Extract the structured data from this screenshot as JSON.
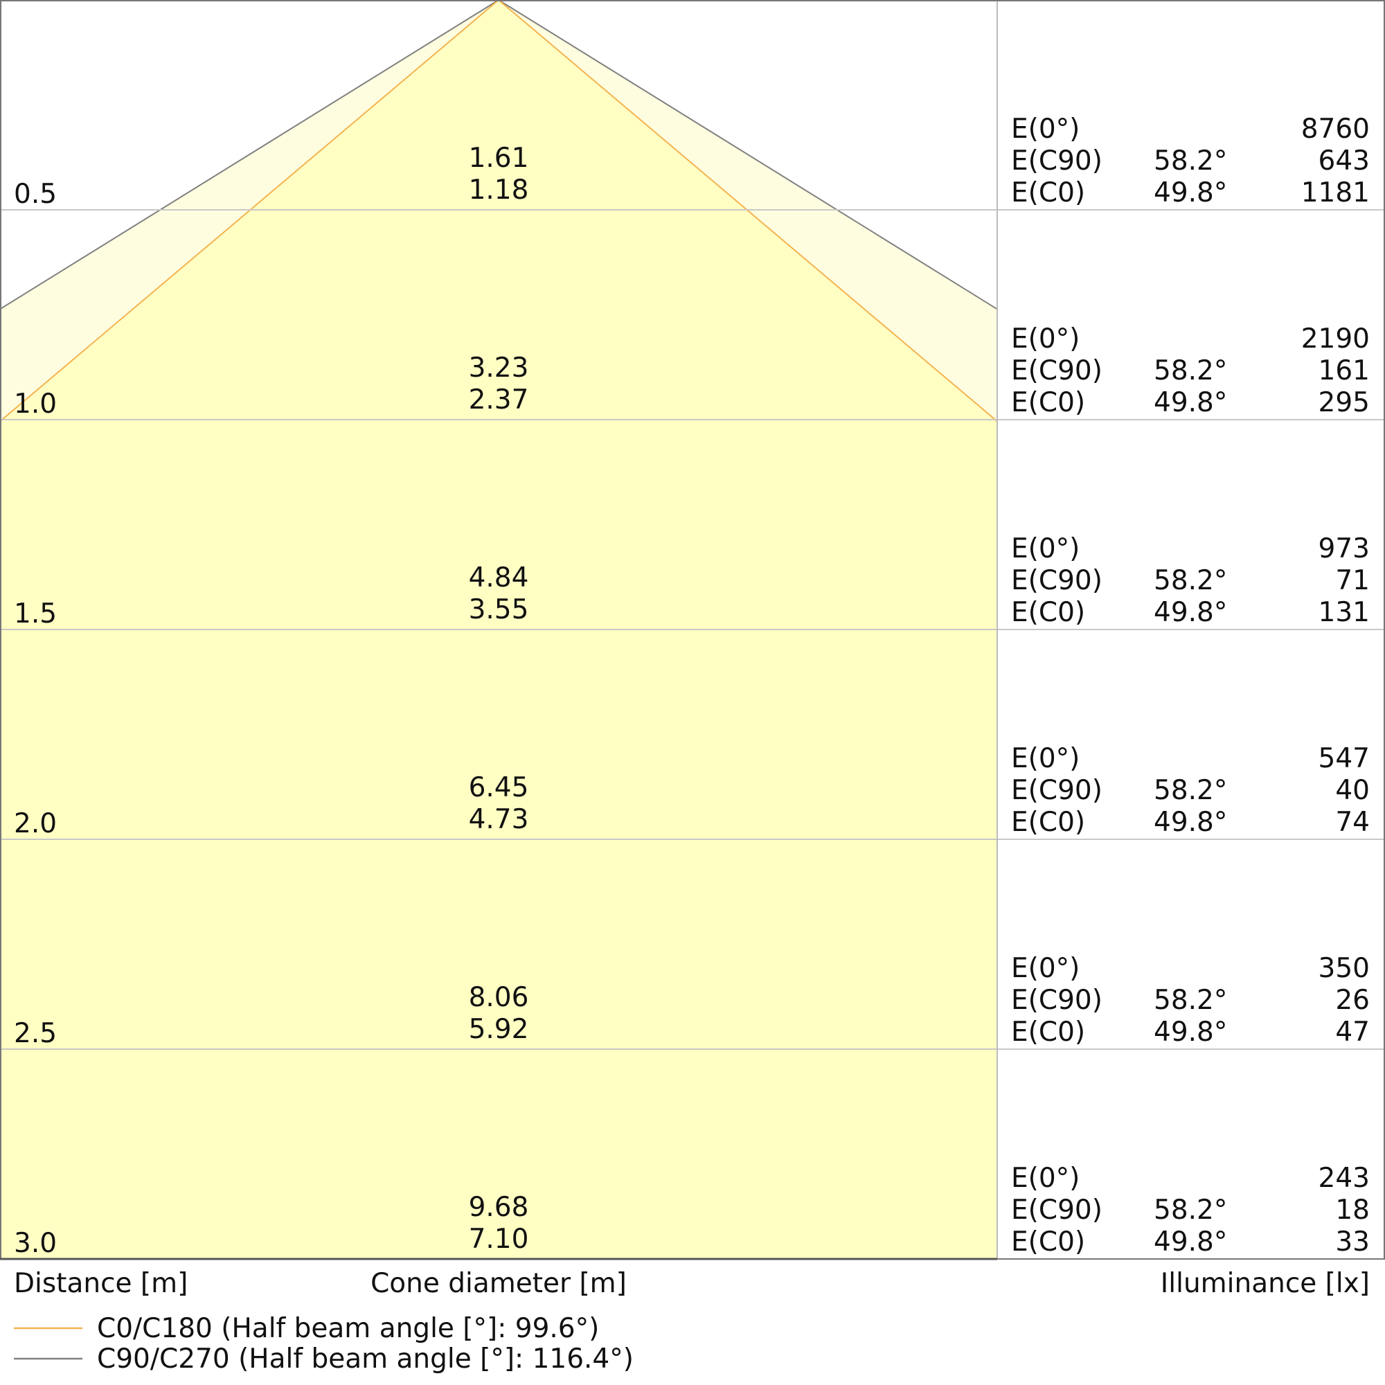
{
  "chart_data": {
    "type": "area",
    "distance_label": "Distance [m]",
    "cone_label": "Cone diameter [m]",
    "illuminance_label": "Illuminance [lx]",
    "distance_range": [
      0,
      3.0
    ],
    "colors": {
      "c0": "#f5b350",
      "c90": "#808080",
      "fill_c0": "#ffffc4",
      "fill_c90": "#fffde0",
      "grid": "#c8c8c8"
    },
    "half_angles_deg": {
      "c0": 49.8,
      "c90": 58.2
    },
    "series": [
      {
        "name": "C0/C180 (Half beam angle [°]: 99.6°)",
        "key": "c0"
      },
      {
        "name": "C90/C270 (Half beam angle [°]: 116.4°)",
        "key": "c90"
      }
    ],
    "rows": [
      {
        "distance": "0.5",
        "d": 0.5,
        "c90_diameter": "1.61",
        "c0_diameter": "1.18",
        "e0": "8760",
        "ec90": "643",
        "ec0": "1181"
      },
      {
        "distance": "1.0",
        "d": 1.0,
        "c90_diameter": "3.23",
        "c0_diameter": "2.37",
        "e0": "2190",
        "ec90": "161",
        "ec0": "295"
      },
      {
        "distance": "1.5",
        "d": 1.5,
        "c90_diameter": "4.84",
        "c0_diameter": "3.55",
        "e0": "973",
        "ec90": "71",
        "ec0": "131"
      },
      {
        "distance": "2.0",
        "d": 2.0,
        "c90_diameter": "6.45",
        "c0_diameter": "4.73",
        "e0": "547",
        "ec90": "40",
        "ec0": "74"
      },
      {
        "distance": "2.5",
        "d": 2.5,
        "c90_diameter": "8.06",
        "c0_diameter": "5.92",
        "e0": "350",
        "ec90": "26",
        "ec0": "47"
      },
      {
        "distance": "3.0",
        "d": 3.0,
        "c90_diameter": "9.68",
        "c0_diameter": "7.10",
        "e0": "243",
        "ec90": "18",
        "ec0": "33"
      }
    ],
    "row_labels": {
      "e0": "E(0°)",
      "ec90": "E(C90)",
      "ec0": "E(C0)",
      "ec90_angle": "58.2°",
      "ec0_angle": "49.8°"
    }
  }
}
